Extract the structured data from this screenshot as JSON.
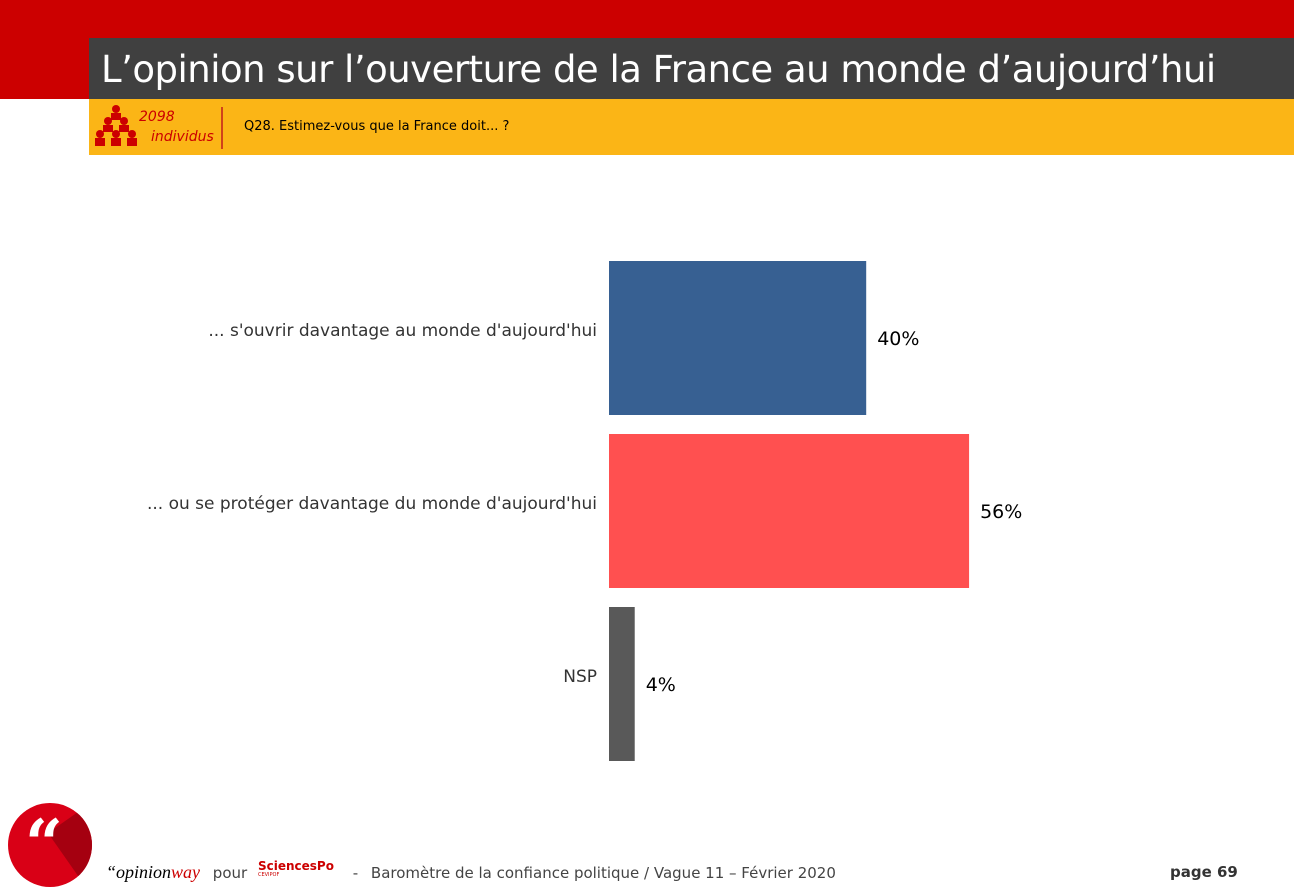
{
  "header": {
    "title": "L’opinion sur l’ouverture de la France au monde d’aujourd’hui",
    "sample_count": "2098",
    "sample_label": "individus",
    "question": "Q28. Estimez-vous que la France doit... ?"
  },
  "chart_data": {
    "type": "bar",
    "orientation": "horizontal",
    "categories": [
      "... s'ouvrir davantage au monde d'aujourd'hui",
      "... ou se protéger davantage du monde d'aujourd'hui",
      "NSP"
    ],
    "values": [
      40,
      56,
      4
    ],
    "labels": [
      "40%",
      "56%",
      "4%"
    ],
    "colors": [
      "#376092",
      "#ff5050",
      "#595959"
    ],
    "unit": "%",
    "xlim": [
      0,
      100
    ],
    "grid": false,
    "legend": "none"
  },
  "footer": {
    "brand_opinion": "“opinion",
    "brand_way": "way",
    "pour": "pour",
    "partner": "SciencesPo",
    "partner_sub": "CEVIPOF",
    "separator": "-",
    "description": "Baromètre de la confiance politique / Vague 11 – Février 2020",
    "page": "page 69"
  },
  "logo_glyph": "“"
}
